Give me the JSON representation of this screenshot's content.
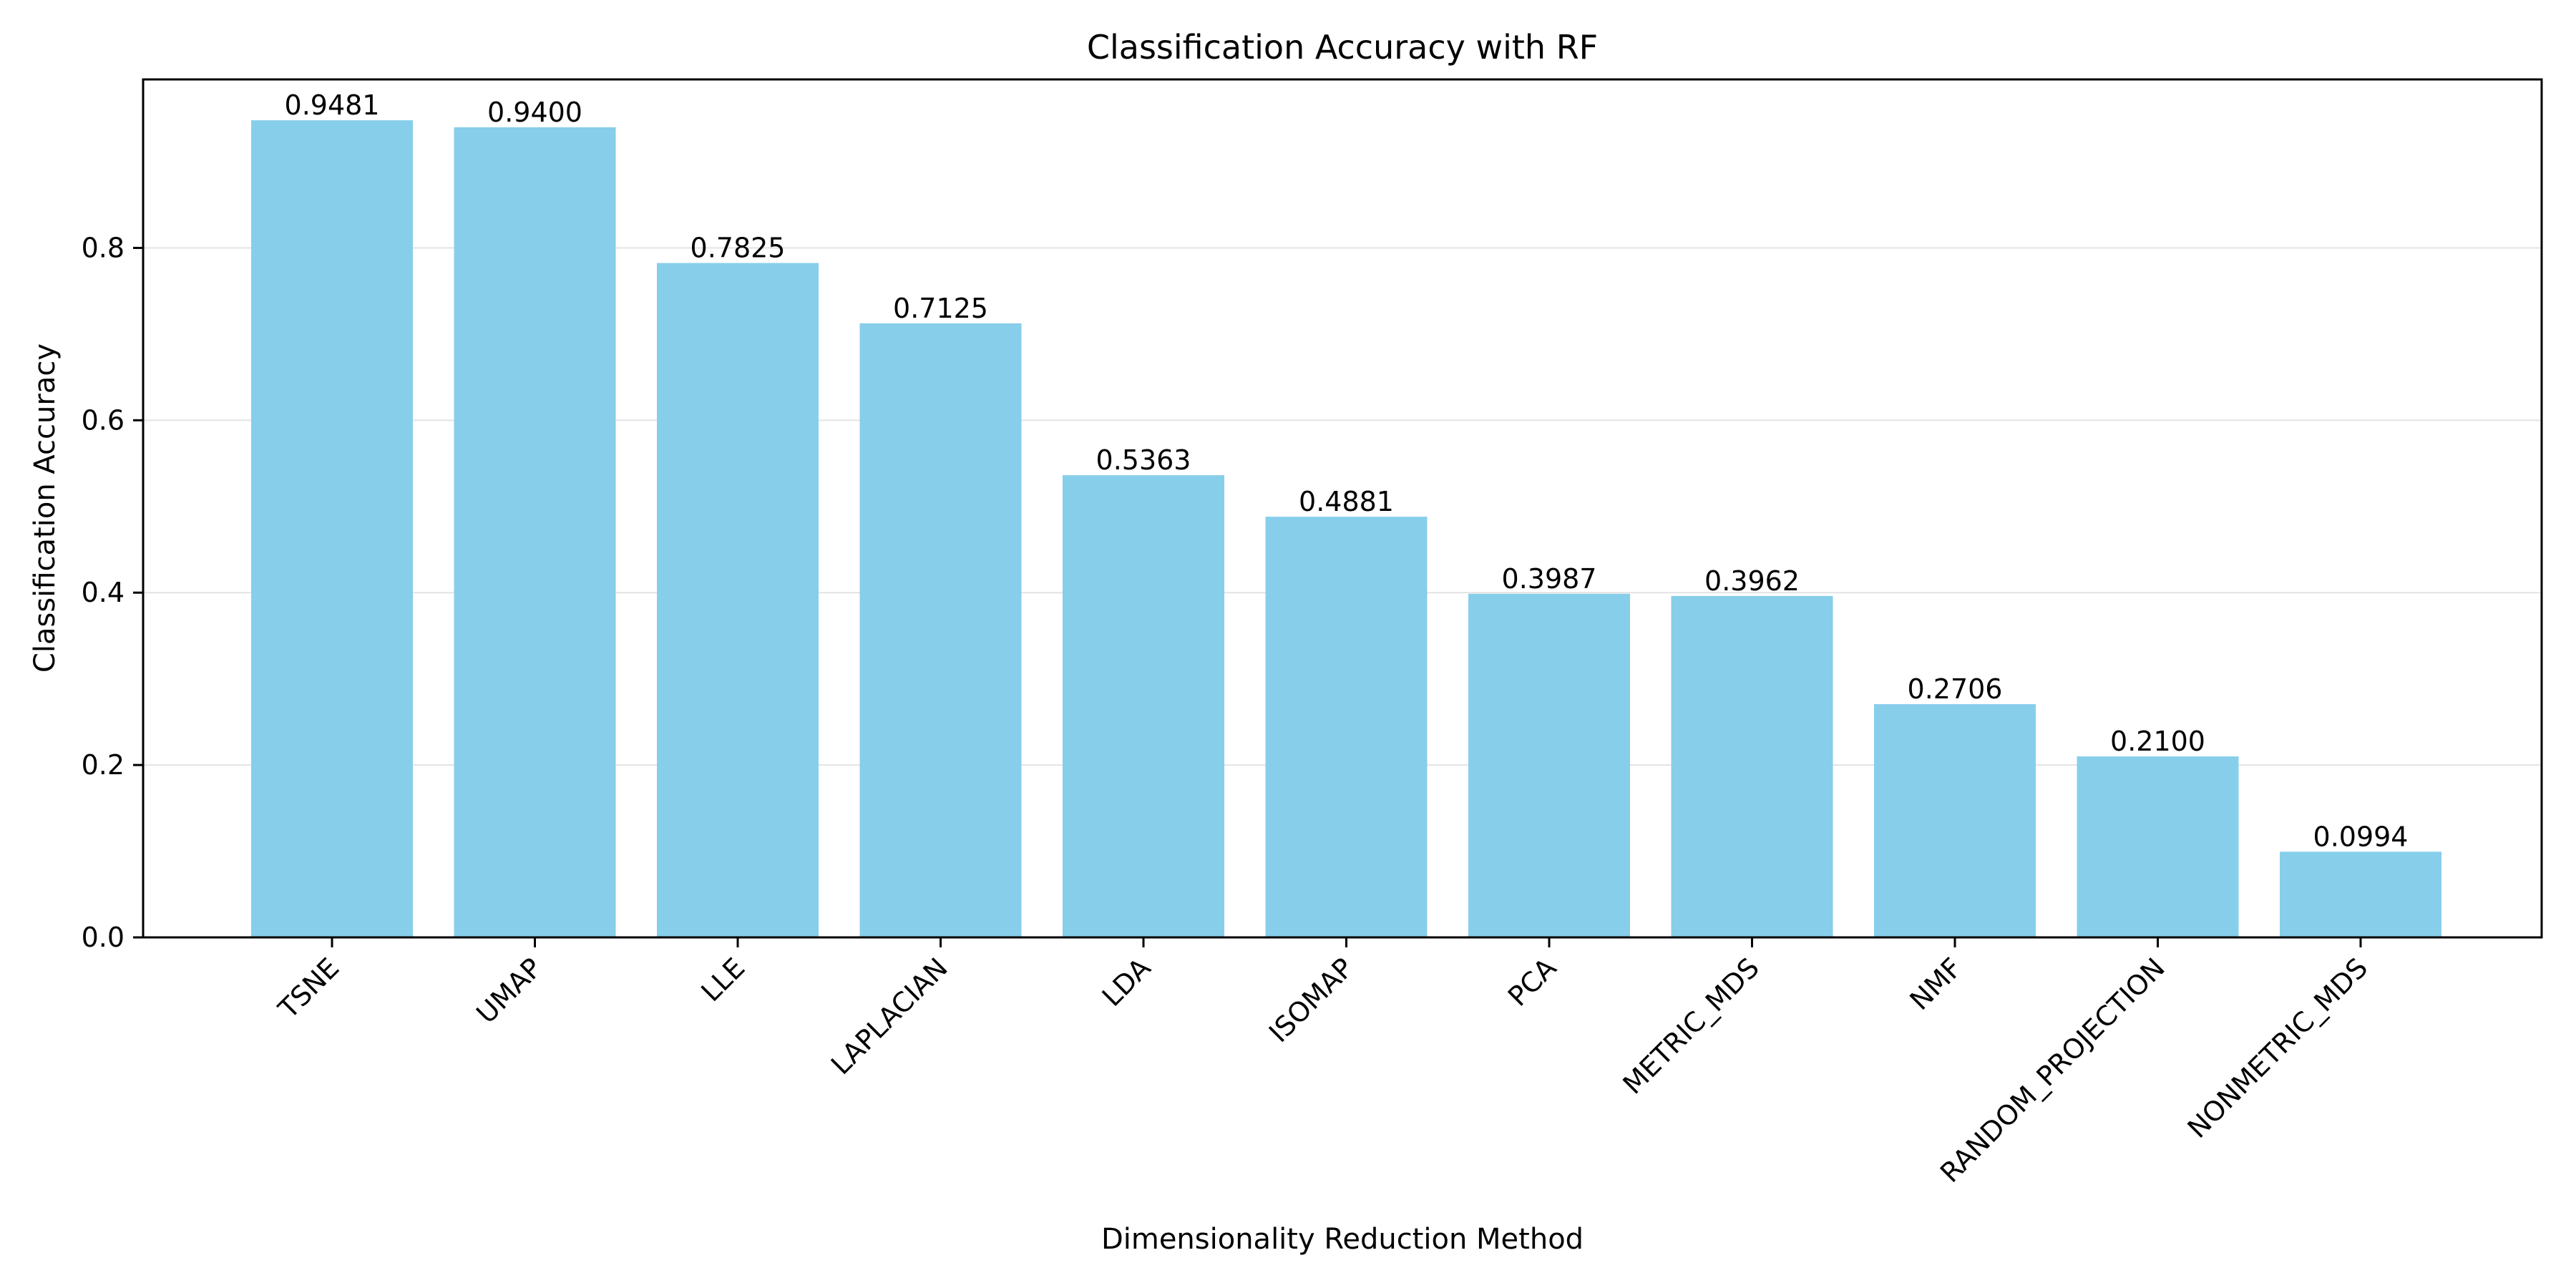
{
  "chart_data": {
    "type": "bar",
    "title": "Classification Accuracy with RF",
    "xlabel": "Dimensionality Reduction Method",
    "ylabel": "Classification Accuracy",
    "categories": [
      "TSNE",
      "UMAP",
      "LLE",
      "LAPLACIAN",
      "LDA",
      "ISOMAP",
      "PCA",
      "METRIC_MDS",
      "NMF",
      "RANDOM_PROJECTION",
      "NONMETRIC_MDS"
    ],
    "values": [
      0.9481,
      0.94,
      0.7825,
      0.7125,
      0.5363,
      0.4881,
      0.3987,
      0.3962,
      0.2706,
      0.21,
      0.0994
    ],
    "data_labels": [
      "0.9481",
      "0.9400",
      "0.7825",
      "0.7125",
      "0.5363",
      "0.4881",
      "0.3987",
      "0.3962",
      "0.2706",
      "0.2100",
      "0.0994"
    ],
    "ylim": [
      0,
      0.9955
    ],
    "yticks": [
      0.0,
      0.2,
      0.4,
      0.6,
      0.8
    ],
    "ytick_labels": [
      "0.0",
      "0.2",
      "0.4",
      "0.6",
      "0.8"
    ],
    "grid": "y",
    "bar_color": "#87ceeb"
  }
}
